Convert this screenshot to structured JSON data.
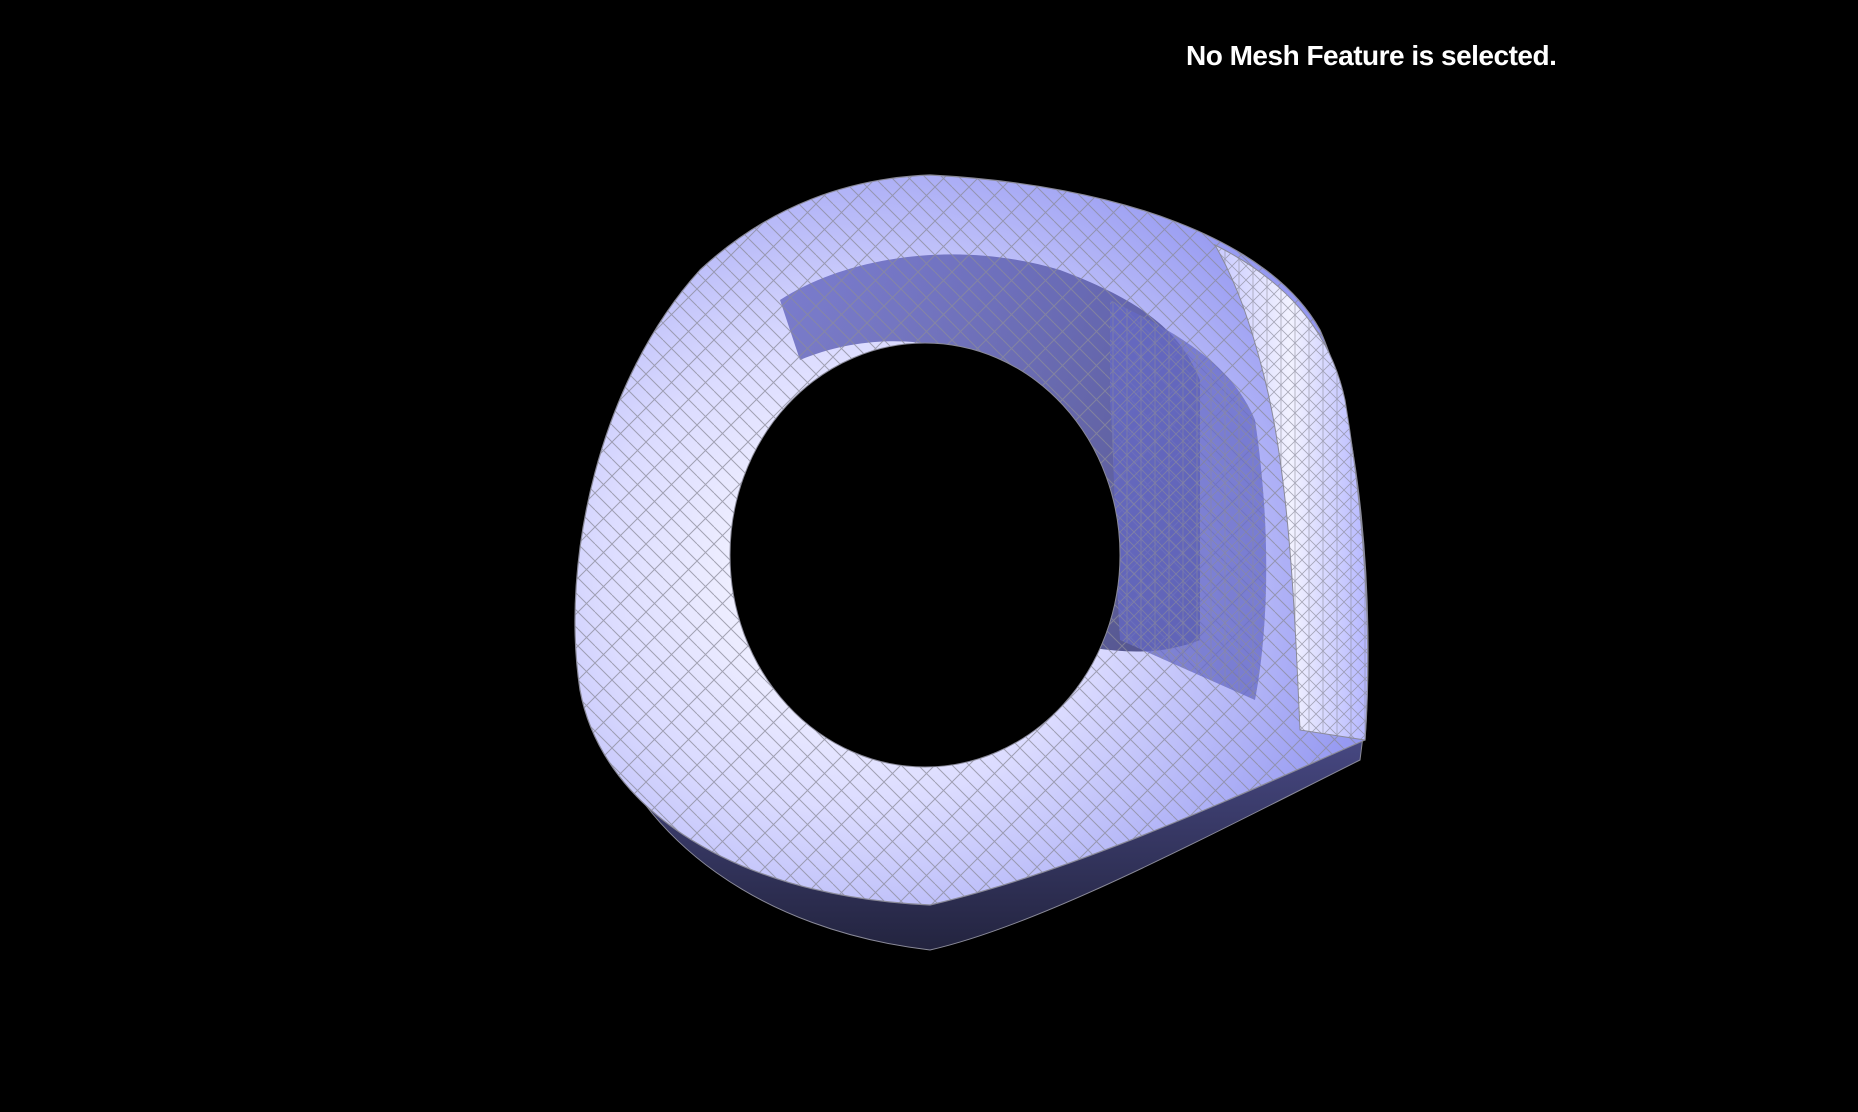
{
  "viewer": {
    "status_message": "No Mesh Feature is selected."
  },
  "colors": {
    "background": "#000000",
    "mesh_face_light": "#e8e8ff",
    "mesh_face_mid": "#a6a9ff",
    "mesh_face_shadow": "#5a5ca8",
    "mesh_face_dark": "#2e2f55",
    "wireframe": "#8a8a99",
    "status_text": "#ffffff"
  },
  "mesh": {
    "name": "torus-like mesh",
    "render_mode": "shaded-with-wireframe"
  }
}
